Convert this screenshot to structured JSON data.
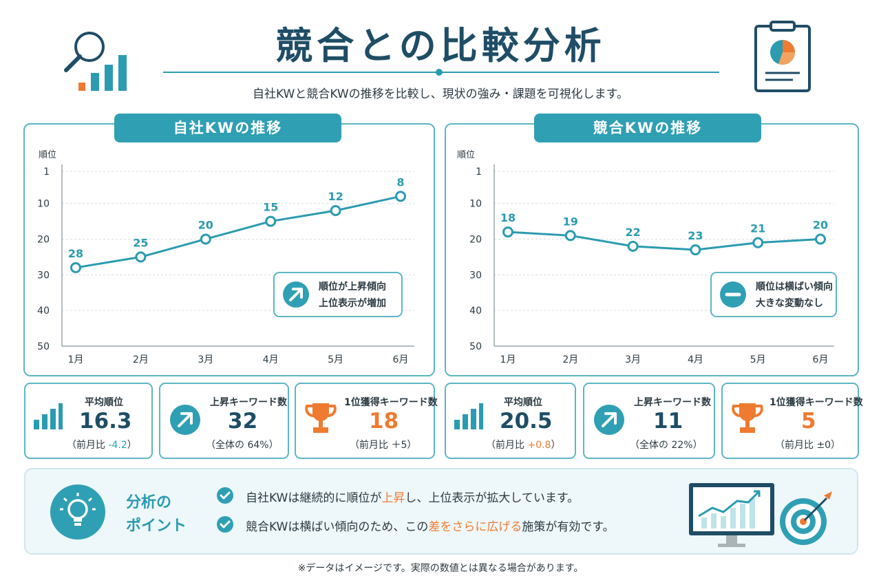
{
  "header": {
    "title": "競合との比較分析",
    "subtitle": "自社KWと競合KWの推移を比較し、現状の強み・課題を可視化します。"
  },
  "chart_data": [
    {
      "type": "line",
      "title": "自社KWの推移",
      "ylabel": "順位",
      "categories": [
        "1月",
        "2月",
        "3月",
        "4月",
        "5月",
        "6月"
      ],
      "yticks": [
        1,
        10,
        20,
        30,
        40,
        50
      ],
      "ylim": [
        1,
        50
      ],
      "y_reversed": true,
      "series": [
        {
          "values": [
            28,
            25,
            20,
            15,
            12,
            8
          ]
        }
      ],
      "data_labels": [
        "28",
        "25",
        "20",
        "15",
        "12",
        "8"
      ],
      "annotation": [
        "順位が上昇傾向",
        "上位表示が増加"
      ],
      "annotation_icon": "arrow-up-right-icon",
      "color": "#2a9bb0"
    },
    {
      "type": "line",
      "title": "競合KWの推移",
      "ylabel": "順位",
      "categories": [
        "1月",
        "2月",
        "3月",
        "4月",
        "5月",
        "6月"
      ],
      "yticks": [
        1,
        10,
        20,
        30,
        40,
        50
      ],
      "ylim": [
        1,
        50
      ],
      "y_reversed": true,
      "series": [
        {
          "values": [
            18,
            19,
            22,
            23,
            21,
            20
          ]
        }
      ],
      "data_labels": [
        "18",
        "19",
        "22",
        "23",
        "21",
        "20"
      ],
      "annotation": [
        "順位は横ばい傾向",
        "大きな変動なし"
      ],
      "annotation_icon": "minus-circle-icon",
      "color": "#2a9bb0"
    }
  ],
  "stats": {
    "own": [
      {
        "label": "平均順位",
        "value": "16.3",
        "sub_prefix": "（前月比 ",
        "sub_highlight": "-4.2",
        "sub_suffix": "）",
        "icon": "bar-chart-icon"
      },
      {
        "label": "上昇キーワード数",
        "value": "32",
        "sub_prefix": "（全体の 64%）",
        "sub_highlight": "",
        "sub_suffix": "",
        "icon": "arrow-up-right-icon"
      },
      {
        "label": "1位獲得キーワード数",
        "value": "18",
        "sub_prefix": "（前月比 ＋5）",
        "sub_highlight": "",
        "sub_suffix": "",
        "icon": "trophy-icon"
      }
    ],
    "competitor": [
      {
        "label": "平均順位",
        "value": "20.5",
        "sub_prefix": "（前月比 ",
        "sub_highlight": "+0.8",
        "sub_suffix": "）",
        "icon": "bar-chart-icon"
      },
      {
        "label": "上昇キーワード数",
        "value": "11",
        "sub_prefix": "（全体の 22%）",
        "sub_highlight": "",
        "sub_suffix": "",
        "icon": "arrow-up-right-icon"
      },
      {
        "label": "1位獲得キーワード数",
        "value": "5",
        "sub_prefix": "（前月比 ±0）",
        "sub_highlight": "",
        "sub_suffix": "",
        "icon": "trophy-icon"
      }
    ]
  },
  "analysis": {
    "heading_line1": "分析の",
    "heading_line2": "ポイント",
    "point1": {
      "a": "自社KWは継続的に順位が",
      "h": "上昇",
      "b": "し、上位表示が拡大しています。"
    },
    "point2": {
      "a": "競合KWは横ばい傾向のため、この",
      "h": "差をさらに広げる",
      "b": "施策が有効です。"
    }
  },
  "footnote": "※データはイメージです。実際の数値とは異なる場合があります。",
  "colors": {
    "accent": "#2a9bb0",
    "dark": "#1f4d66",
    "highlight": "#ee7b30"
  }
}
